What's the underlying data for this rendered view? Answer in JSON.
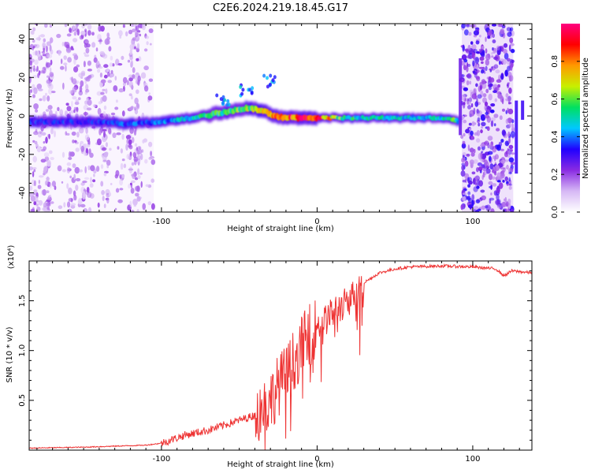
{
  "figure_title": "C2E6.2024.219.18.45.G17",
  "chart_data": [
    {
      "type": "heatmap",
      "xlabel": "Height of straight line (km)",
      "ylabel": "Frequency (Hz)",
      "xlim": [
        -185,
        138
      ],
      "ylim": [
        -50,
        48
      ],
      "x_ticks": [
        -100,
        0,
        100
      ],
      "x_tick_labels": [
        "-100",
        "0",
        "100"
      ],
      "y_ticks": [
        -40,
        -20,
        0,
        20,
        40
      ],
      "y_tick_labels": [
        "-40",
        "-20",
        "0",
        "20",
        "40"
      ],
      "colorbar": {
        "label": "Normalized spectral amplitude",
        "range": [
          0,
          1
        ],
        "ticks": [
          0.0,
          0.2,
          0.4,
          0.6,
          0.8
        ],
        "tick_labels": [
          "0.0",
          "0.2",
          "0.4",
          "0.6",
          "0.8"
        ],
        "colormap": [
          "#ffffff",
          "#d6b8f5",
          "#8a2be2",
          "#2000ff",
          "#00c8ff",
          "#00e060",
          "#c8f000",
          "#ff9900",
          "#ff0000",
          "#ff007f"
        ]
      },
      "trace": {
        "x": [
          -185,
          -150,
          -120,
          -100,
          -80,
          -60,
          -45,
          -35,
          -28,
          -20,
          -10,
          0,
          20,
          50,
          80,
          88,
          92
        ],
        "frequency": [
          -3,
          -3,
          -4,
          -3,
          -1,
          2,
          4,
          3,
          0,
          -1,
          -1,
          -1,
          -1,
          -1,
          -1,
          -2,
          -3
        ],
        "peak_amplitude": [
          0.35,
          0.35,
          0.4,
          0.4,
          0.55,
          0.6,
          0.65,
          0.75,
          0.85,
          0.9,
          0.95,
          0.95,
          0.55,
          0.5,
          0.5,
          0.6,
          0.4
        ]
      },
      "noise_regions_x": [
        [
          -185,
          -105
        ],
        [
          93,
          126
        ]
      ]
    },
    {
      "type": "line",
      "xlabel": "Height of straight line (km)",
      "ylabel": "SNR (10 * v/v)",
      "y_scale_note": "(x10⁴)",
      "xlim": [
        -185,
        138
      ],
      "ylim": [
        0,
        1.9
      ],
      "x_ticks": [
        -100,
        0,
        100
      ],
      "x_tick_labels": [
        "-100",
        "0",
        "100"
      ],
      "y_ticks": [
        0.5,
        1.0,
        1.5
      ],
      "y_tick_labels": [
        "0.5",
        "1.0",
        "1.5"
      ],
      "series": [
        {
          "color": "#ee3333",
          "x": [
            -185,
            -150,
            -110,
            -100,
            -85,
            -70,
            -60,
            -50,
            -40,
            -30,
            -25,
            -20,
            -15,
            -10,
            -5,
            0,
            5,
            10,
            20,
            30,
            40,
            50,
            60,
            80,
            100,
            115,
            120,
            125,
            138
          ],
          "y": [
            0.02,
            0.03,
            0.05,
            0.07,
            0.15,
            0.2,
            0.25,
            0.3,
            0.35,
            0.5,
            0.65,
            0.75,
            0.9,
            1.05,
            1.15,
            1.25,
            1.3,
            1.38,
            1.5,
            1.68,
            1.78,
            1.82,
            1.84,
            1.85,
            1.84,
            1.82,
            1.75,
            1.8,
            1.78
          ]
        }
      ]
    }
  ]
}
